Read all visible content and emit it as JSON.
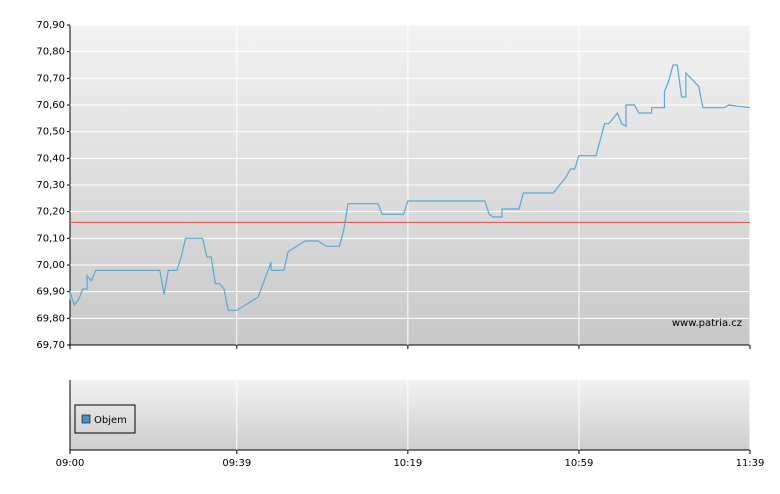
{
  "chart_data": {
    "type": "line",
    "watermark": "www.patria.cz",
    "color": "#5aa9d0",
    "x": [
      "09:00",
      "09:00",
      "09:01",
      "09:02",
      "09:03",
      "09:04",
      "09:04",
      "09:05",
      "09:06",
      "09:21",
      "09:22",
      "09:23",
      "09:25",
      "09:26",
      "09:27",
      "09:31",
      "09:32",
      "09:33",
      "09:34",
      "09:35",
      "09:36",
      "09:36",
      "09:37",
      "09:39",
      "09:44",
      "09:47",
      "09:47",
      "09:50",
      "09:51",
      "09:51",
      "09:55",
      "09:58",
      "10:00",
      "10:03",
      "10:04",
      "10:04",
      "10:05",
      "10:12",
      "10:13",
      "10:18",
      "10:19",
      "10:37",
      "10:38",
      "10:39",
      "10:41",
      "10:41",
      "10:45",
      "10:46",
      "10:53",
      "10:56",
      "10:57",
      "10:58",
      "10:59",
      "11:03",
      "11:05",
      "11:06",
      "11:08",
      "11:09",
      "11:10",
      "11:10",
      "11:12",
      "11:13",
      "11:16",
      "11:16",
      "11:19",
      "11:19",
      "11:20",
      "11:21",
      "11:22",
      "11:23",
      "11:24",
      "11:24",
      "11:27",
      "11:28",
      "11:33",
      "11:34",
      "11:39"
    ],
    "values": [
      69.87,
      69.9,
      69.85,
      69.87,
      69.91,
      69.91,
      69.96,
      69.94,
      69.98,
      69.98,
      69.89,
      69.98,
      69.98,
      70.03,
      70.1,
      70.1,
      70.03,
      70.03,
      69.93,
      69.93,
      69.91,
      69.91,
      69.83,
      69.83,
      69.88,
      70.01,
      69.98,
      69.98,
      70.05,
      70.05,
      70.09,
      70.09,
      70.07,
      70.07,
      70.13,
      70.13,
      70.23,
      70.23,
      70.19,
      70.19,
      70.24,
      70.24,
      70.19,
      70.18,
      70.18,
      70.21,
      70.21,
      70.27,
      70.27,
      70.33,
      70.36,
      70.36,
      70.41,
      70.41,
      70.53,
      70.53,
      70.57,
      70.53,
      70.52,
      70.6,
      70.6,
      70.57,
      70.57,
      70.59,
      70.59,
      70.65,
      70.69,
      70.75,
      70.75,
      70.63,
      70.63,
      70.72,
      70.67,
      70.59,
      70.59,
      70.6,
      70.59
    ],
    "reference_line": 70.16,
    "reference_color": "#e05050",
    "xlim": [
      "09:00",
      "11:39"
    ],
    "xticks": [
      "09:00",
      "09:39",
      "10:19",
      "10:59",
      "11:39"
    ],
    "ylim": [
      69.7,
      70.9
    ],
    "yticks": [
      {
        "value": 69.7,
        "label": "69,70"
      },
      {
        "value": 69.8,
        "label": "69,80"
      },
      {
        "value": 69.9,
        "label": "69,90"
      },
      {
        "value": 70.0,
        "label": "70,00"
      },
      {
        "value": 70.1,
        "label": "70,10"
      },
      {
        "value": 70.2,
        "label": "70,20"
      },
      {
        "value": 70.3,
        "label": "70,30"
      },
      {
        "value": 70.4,
        "label": "70,40"
      },
      {
        "value": 70.5,
        "label": "70,50"
      },
      {
        "value": 70.6,
        "label": "70,60"
      },
      {
        "value": 70.7,
        "label": "70,70"
      },
      {
        "value": 70.8,
        "label": "70,80"
      },
      {
        "value": 70.9,
        "label": "70,90"
      }
    ],
    "grid": true,
    "legend": {
      "label": "Objem",
      "color": "#4a90c0"
    }
  }
}
